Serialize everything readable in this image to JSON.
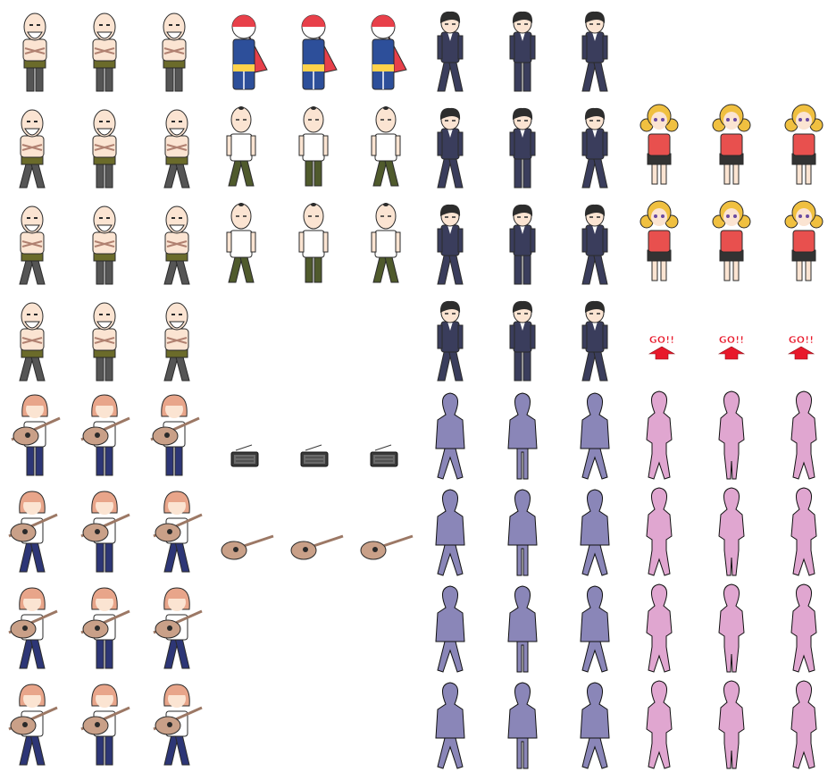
{
  "sheet": {
    "columns": 12,
    "rows": 8,
    "background": "#ffffff"
  },
  "palette": {
    "skin": "#fbe4d2",
    "outline": "#2a2a2a",
    "old_pants": "#555555",
    "old_belt": "#6b6b2a",
    "suit": "#3a3d5c",
    "suit_hair": "#2d2d2d",
    "hero_red": "#e8404a",
    "hero_blue": "#2d4f9a",
    "bald_shirt": "#ffffff",
    "bald_pants": "#4f5a2c",
    "blonde_hair": "#f0c040",
    "blonde_top": "#e8504e",
    "blonde_skirt": "#333333",
    "guitar_hair": "#e8a58a",
    "guitar_body": "#c9a088",
    "jeans": "#2d3676",
    "radio": "#3a3a3a",
    "silhouette_male": "#8a86b8",
    "silhouette_female": "#e0a6d0",
    "go_red": "#e8192b"
  },
  "sprites": [
    {
      "row": 0,
      "col": 0,
      "kind": "old-man-icon",
      "pose": "front"
    },
    {
      "row": 0,
      "col": 1,
      "kind": "old-man-icon",
      "pose": "front"
    },
    {
      "row": 0,
      "col": 2,
      "kind": "old-man-icon",
      "pose": "front"
    },
    {
      "row": 0,
      "col": 3,
      "kind": "caped-hero-icon",
      "pose": "front"
    },
    {
      "row": 0,
      "col": 4,
      "kind": "caped-hero-icon",
      "pose": "front"
    },
    {
      "row": 0,
      "col": 5,
      "kind": "caped-hero-icon",
      "pose": "front"
    },
    {
      "row": 0,
      "col": 6,
      "kind": "suit-man-icon",
      "pose": "left"
    },
    {
      "row": 0,
      "col": 7,
      "kind": "suit-man-icon",
      "pose": "front"
    },
    {
      "row": 0,
      "col": 8,
      "kind": "suit-man-icon",
      "pose": "right"
    },
    {
      "row": 1,
      "col": 0,
      "kind": "old-man-icon",
      "pose": "left"
    },
    {
      "row": 1,
      "col": 1,
      "kind": "old-man-icon",
      "pose": "front"
    },
    {
      "row": 1,
      "col": 2,
      "kind": "old-man-icon",
      "pose": "right"
    },
    {
      "row": 1,
      "col": 3,
      "kind": "bald-man-icon",
      "pose": "left"
    },
    {
      "row": 1,
      "col": 4,
      "kind": "bald-man-icon",
      "pose": "front"
    },
    {
      "row": 1,
      "col": 5,
      "kind": "bald-man-icon",
      "pose": "right"
    },
    {
      "row": 1,
      "col": 6,
      "kind": "suit-man-icon",
      "pose": "left"
    },
    {
      "row": 1,
      "col": 7,
      "kind": "suit-man-icon",
      "pose": "front"
    },
    {
      "row": 1,
      "col": 8,
      "kind": "suit-man-icon",
      "pose": "right"
    },
    {
      "row": 1,
      "col": 9,
      "kind": "blonde-girl-icon",
      "pose": "left"
    },
    {
      "row": 1,
      "col": 10,
      "kind": "blonde-girl-icon",
      "pose": "front"
    },
    {
      "row": 1,
      "col": 11,
      "kind": "blonde-girl-icon",
      "pose": "right"
    },
    {
      "row": 2,
      "col": 0,
      "kind": "old-man-icon",
      "pose": "left"
    },
    {
      "row": 2,
      "col": 1,
      "kind": "old-man-icon",
      "pose": "front"
    },
    {
      "row": 2,
      "col": 2,
      "kind": "old-man-icon",
      "pose": "right"
    },
    {
      "row": 2,
      "col": 3,
      "kind": "bald-man-icon",
      "pose": "left"
    },
    {
      "row": 2,
      "col": 4,
      "kind": "bald-man-icon",
      "pose": "front"
    },
    {
      "row": 2,
      "col": 5,
      "kind": "bald-man-icon",
      "pose": "right"
    },
    {
      "row": 2,
      "col": 6,
      "kind": "suit-man-icon",
      "pose": "left"
    },
    {
      "row": 2,
      "col": 7,
      "kind": "suit-man-icon",
      "pose": "front"
    },
    {
      "row": 2,
      "col": 8,
      "kind": "suit-man-icon",
      "pose": "right"
    },
    {
      "row": 2,
      "col": 9,
      "kind": "blonde-girl-icon",
      "pose": "left"
    },
    {
      "row": 2,
      "col": 10,
      "kind": "blonde-girl-icon",
      "pose": "front"
    },
    {
      "row": 2,
      "col": 11,
      "kind": "blonde-girl-icon",
      "pose": "right"
    },
    {
      "row": 3,
      "col": 0,
      "kind": "old-man-icon",
      "pose": "left"
    },
    {
      "row": 3,
      "col": 1,
      "kind": "old-man-icon",
      "pose": "front"
    },
    {
      "row": 3,
      "col": 2,
      "kind": "old-man-icon",
      "pose": "right"
    },
    {
      "row": 3,
      "col": 6,
      "kind": "suit-man-icon",
      "pose": "left"
    },
    {
      "row": 3,
      "col": 7,
      "kind": "suit-man-icon",
      "pose": "front"
    },
    {
      "row": 3,
      "col": 8,
      "kind": "suit-man-icon",
      "pose": "right"
    },
    {
      "row": 3,
      "col": 9,
      "kind": "go-arrow-icon",
      "pose": "front"
    },
    {
      "row": 3,
      "col": 10,
      "kind": "go-arrow-icon",
      "pose": "front"
    },
    {
      "row": 3,
      "col": 11,
      "kind": "go-arrow-icon",
      "pose": "front"
    },
    {
      "row": 4,
      "col": 0,
      "kind": "guitar-girl-icon",
      "pose": "front"
    },
    {
      "row": 4,
      "col": 1,
      "kind": "guitar-girl-icon",
      "pose": "front"
    },
    {
      "row": 4,
      "col": 2,
      "kind": "guitar-girl-icon",
      "pose": "front"
    },
    {
      "row": 4,
      "col": 3,
      "kind": "radio-icon",
      "pose": "front"
    },
    {
      "row": 4,
      "col": 4,
      "kind": "radio-icon",
      "pose": "front"
    },
    {
      "row": 4,
      "col": 5,
      "kind": "radio-icon",
      "pose": "front"
    },
    {
      "row": 4,
      "col": 6,
      "kind": "male-silhouette-icon",
      "pose": "left"
    },
    {
      "row": 4,
      "col": 7,
      "kind": "male-silhouette-icon",
      "pose": "front"
    },
    {
      "row": 4,
      "col": 8,
      "kind": "male-silhouette-icon",
      "pose": "right"
    },
    {
      "row": 4,
      "col": 9,
      "kind": "female-silhouette-icon",
      "pose": "left"
    },
    {
      "row": 4,
      "col": 10,
      "kind": "female-silhouette-icon",
      "pose": "front"
    },
    {
      "row": 4,
      "col": 11,
      "kind": "female-silhouette-icon",
      "pose": "right"
    },
    {
      "row": 5,
      "col": 0,
      "kind": "guitar-girl-icon",
      "pose": "left"
    },
    {
      "row": 5,
      "col": 1,
      "kind": "guitar-girl-icon",
      "pose": "front"
    },
    {
      "row": 5,
      "col": 2,
      "kind": "guitar-girl-icon",
      "pose": "right"
    },
    {
      "row": 5,
      "col": 3,
      "kind": "guitar-icon",
      "pose": "front"
    },
    {
      "row": 5,
      "col": 4,
      "kind": "guitar-icon",
      "pose": "front"
    },
    {
      "row": 5,
      "col": 5,
      "kind": "guitar-icon",
      "pose": "front"
    },
    {
      "row": 5,
      "col": 6,
      "kind": "male-silhouette-icon",
      "pose": "left"
    },
    {
      "row": 5,
      "col": 7,
      "kind": "male-silhouette-icon",
      "pose": "front"
    },
    {
      "row": 5,
      "col": 8,
      "kind": "male-silhouette-icon",
      "pose": "right"
    },
    {
      "row": 5,
      "col": 9,
      "kind": "female-silhouette-icon",
      "pose": "left"
    },
    {
      "row": 5,
      "col": 10,
      "kind": "female-silhouette-icon",
      "pose": "front"
    },
    {
      "row": 5,
      "col": 11,
      "kind": "female-silhouette-icon",
      "pose": "right"
    },
    {
      "row": 6,
      "col": 0,
      "kind": "guitar-girl-icon",
      "pose": "left"
    },
    {
      "row": 6,
      "col": 1,
      "kind": "guitar-girl-icon",
      "pose": "front"
    },
    {
      "row": 6,
      "col": 2,
      "kind": "guitar-girl-icon",
      "pose": "right"
    },
    {
      "row": 6,
      "col": 6,
      "kind": "male-silhouette-icon",
      "pose": "left"
    },
    {
      "row": 6,
      "col": 7,
      "kind": "male-silhouette-icon",
      "pose": "front"
    },
    {
      "row": 6,
      "col": 8,
      "kind": "male-silhouette-icon",
      "pose": "right"
    },
    {
      "row": 6,
      "col": 9,
      "kind": "female-silhouette-icon",
      "pose": "left"
    },
    {
      "row": 6,
      "col": 10,
      "kind": "female-silhouette-icon",
      "pose": "front"
    },
    {
      "row": 6,
      "col": 11,
      "kind": "female-silhouette-icon",
      "pose": "right"
    },
    {
      "row": 7,
      "col": 0,
      "kind": "guitar-girl-icon",
      "pose": "left"
    },
    {
      "row": 7,
      "col": 1,
      "kind": "guitar-girl-icon",
      "pose": "front"
    },
    {
      "row": 7,
      "col": 2,
      "kind": "guitar-girl-icon",
      "pose": "right"
    },
    {
      "row": 7,
      "col": 6,
      "kind": "male-silhouette-icon",
      "pose": "left"
    },
    {
      "row": 7,
      "col": 7,
      "kind": "male-silhouette-icon",
      "pose": "front"
    },
    {
      "row": 7,
      "col": 8,
      "kind": "male-silhouette-icon",
      "pose": "right"
    },
    {
      "row": 7,
      "col": 9,
      "kind": "female-silhouette-icon",
      "pose": "left"
    },
    {
      "row": 7,
      "col": 10,
      "kind": "female-silhouette-icon",
      "pose": "front"
    },
    {
      "row": 7,
      "col": 11,
      "kind": "female-silhouette-icon",
      "pose": "right"
    }
  ],
  "go_label": "GO!!"
}
